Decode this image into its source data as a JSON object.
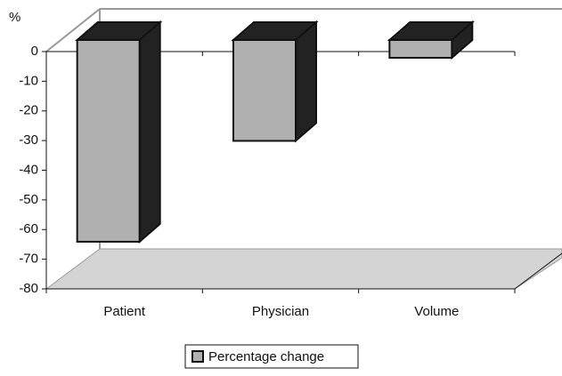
{
  "chart_data": {
    "type": "bar3d",
    "y_label": "%",
    "categories": [
      "Patient",
      "Physician",
      "Volume"
    ],
    "series": [
      {
        "name": "Percentage change",
        "color": "#b0b0b0",
        "values": [
          -68,
          -34,
          -6
        ]
      }
    ],
    "ylim": [
      -80,
      0
    ],
    "yticks": [
      0,
      -10,
      -20,
      -30,
      -40,
      -50,
      -60,
      -70,
      -80
    ],
    "legend": "bottom"
  }
}
